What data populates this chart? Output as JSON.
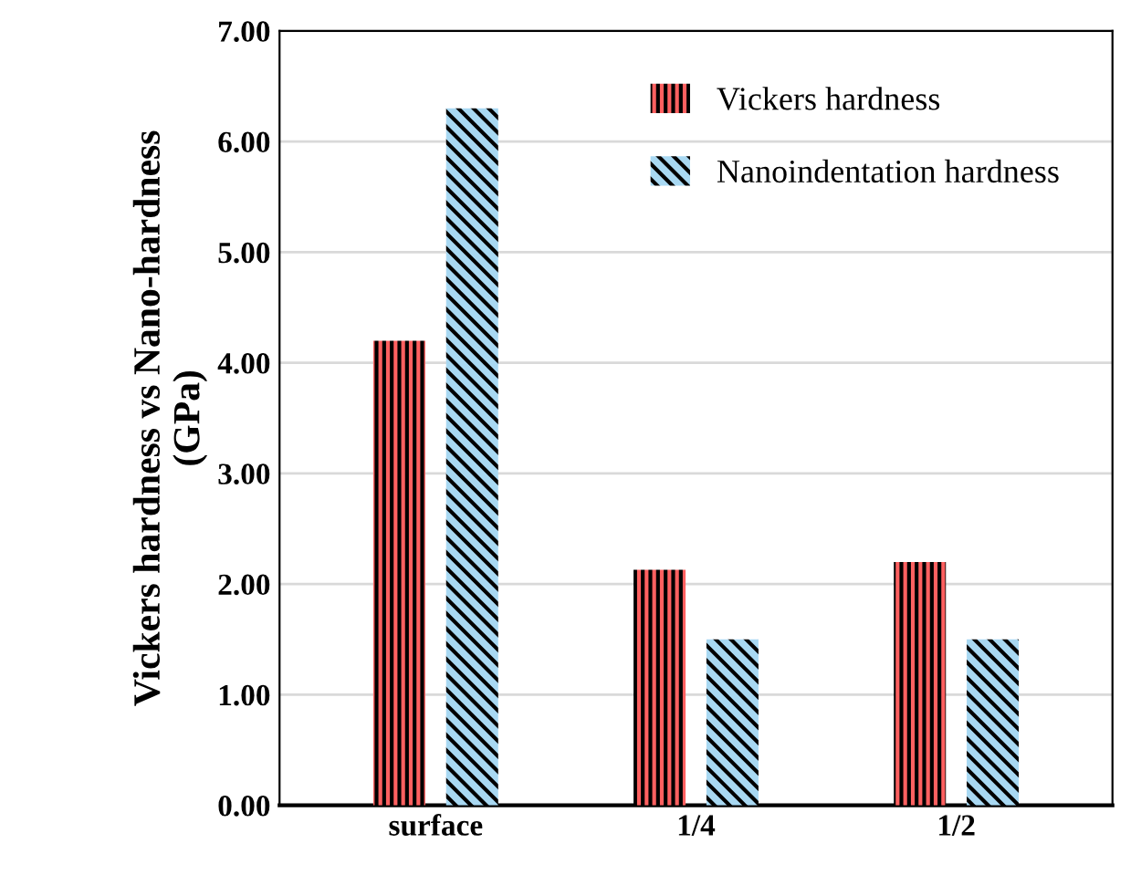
{
  "chart_data": {
    "type": "bar",
    "ylabel": "Vickers hardness vs Nano-hardness\n(GPa)",
    "categories": [
      "surface",
      "1/4",
      "1/2"
    ],
    "series": [
      {
        "name": "Vickers hardness",
        "color": "#ff6060",
        "values": [
          4.2,
          2.13,
          2.2
        ]
      },
      {
        "name": "Nanoindentation hardness",
        "color": "#a8d8f2",
        "values": [
          6.3,
          1.5,
          1.5
        ]
      }
    ],
    "ylim": [
      0,
      7
    ],
    "yticks": [
      {
        "value": 0,
        "label": "0.00"
      },
      {
        "value": 1,
        "label": "1.00"
      },
      {
        "value": 2,
        "label": "2.00"
      },
      {
        "value": 3,
        "label": "3.00"
      },
      {
        "value": 4,
        "label": "4.00"
      },
      {
        "value": 5,
        "label": "5.00"
      },
      {
        "value": 6,
        "label": "6.00"
      },
      {
        "value": 7,
        "label": "7.00"
      }
    ],
    "grid": "y",
    "legend": "top right"
  }
}
